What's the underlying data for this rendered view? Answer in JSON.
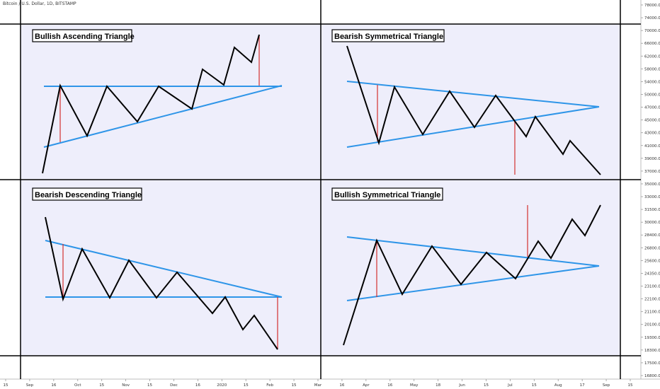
{
  "header": {
    "symbol": "Bitcoin / U.S. Dollar, 1D, BITSTAMP"
  },
  "colors": {
    "panel_bg": "#eeeefb",
    "trendline": "#2e95e8",
    "price": "#000000",
    "target": "#d32f2f",
    "border": "#000000"
  },
  "panels": [
    {
      "title": "Bullish Ascending Triangle",
      "trendlines": [
        [
          [
            62,
            122
          ],
          [
            398,
            122
          ]
        ],
        [
          [
            62,
            208
          ],
          [
            398,
            121
          ]
        ]
      ],
      "price_path": [
        [
          60,
          245
        ],
        [
          85,
          121
        ],
        [
          123,
          192
        ],
        [
          151,
          122
        ],
        [
          194,
          172
        ],
        [
          224,
          122
        ],
        [
          271,
          154
        ],
        [
          286,
          98
        ],
        [
          316,
          120
        ],
        [
          331,
          67
        ],
        [
          355,
          88
        ],
        [
          366,
          49
        ]
      ],
      "targets": [
        [
          [
            85,
            122
          ],
          [
            85,
            201
          ]
        ],
        [
          [
            366,
            49
          ],
          [
            366,
            121
          ]
        ]
      ]
    },
    {
      "title": "Bearish Symmetrical Triangle",
      "trendlines": [
        [
          [
            490,
            115
          ],
          [
            846,
            151
          ]
        ],
        [
          [
            490,
            208
          ],
          [
            846,
            151
          ]
        ]
      ],
      "price_path": [
        [
          490,
          65
        ],
        [
          535,
          202
        ],
        [
          557,
          123
        ],
        [
          597,
          190
        ],
        [
          635,
          129
        ],
        [
          670,
          180
        ],
        [
          700,
          135
        ],
        [
          743,
          193
        ],
        [
          756,
          165
        ],
        [
          795,
          218
        ],
        [
          805,
          199
        ],
        [
          848,
          247
        ]
      ],
      "targets": [
        [
          [
            533,
            120
          ],
          [
            533,
            200
          ]
        ],
        [
          [
            727,
            172
          ],
          [
            727,
            247
          ]
        ]
      ]
    },
    {
      "title": "Bearish Descending Triangle",
      "trendlines": [
        [
          [
            64,
            340
          ],
          [
            398,
            420
          ]
        ],
        [
          [
            64,
            420
          ],
          [
            398,
            420
          ]
        ]
      ],
      "price_path": [
        [
          64,
          307
        ],
        [
          89,
          423
        ],
        [
          116,
          352
        ],
        [
          155,
          421
        ],
        [
          182,
          368
        ],
        [
          221,
          421
        ],
        [
          250,
          385
        ],
        [
          300,
          443
        ],
        [
          318,
          420
        ],
        [
          343,
          466
        ],
        [
          359,
          446
        ],
        [
          392,
          494
        ]
      ],
      "targets": [
        [
          [
            89,
            345
          ],
          [
            89,
            422
          ]
        ],
        [
          [
            392,
            420
          ],
          [
            392,
            494
          ]
        ]
      ]
    },
    {
      "title": "Bullish Symmetrical Triangle",
      "trendlines": [
        [
          [
            490,
            335
          ],
          [
            846,
            376
          ]
        ],
        [
          [
            490,
            425
          ],
          [
            846,
            376
          ]
        ]
      ],
      "price_path": [
        [
          485,
          488
        ],
        [
          532,
          340
        ],
        [
          568,
          416
        ],
        [
          610,
          348
        ],
        [
          651,
          402
        ],
        [
          687,
          357
        ],
        [
          728,
          394
        ],
        [
          760,
          341
        ],
        [
          778,
          365
        ],
        [
          808,
          310
        ],
        [
          826,
          333
        ],
        [
          848,
          290
        ]
      ],
      "targets": [
        [
          [
            532,
            340
          ],
          [
            532,
            420
          ]
        ],
        [
          [
            745,
            290
          ],
          [
            745,
            363
          ]
        ]
      ]
    }
  ],
  "price_axis": {
    "ticks": [
      "78000.00",
      "74000.00",
      "70000.00",
      "66000.00",
      "62000.00",
      "58000.00",
      "54000.00",
      "50000.00",
      "47000.00",
      "45000.00",
      "43000.00",
      "41000.00",
      "39000.00",
      "37000.00",
      "35000.00",
      "33000.00",
      "31500.00",
      "30000.00",
      "28400.00",
      "26800.00",
      "25600.00",
      "24350.00",
      "23100.00",
      "22100.00",
      "21100.00",
      "20100.00",
      "19300.00",
      "18300.00",
      "17500.00",
      "16800.00"
    ]
  },
  "time_axis": {
    "ticks": [
      "15",
      "Sep",
      "16",
      "Oct",
      "15",
      "Nov",
      "15",
      "Dec",
      "16",
      "2020",
      "15",
      "Feb",
      "15",
      "Mar",
      "16",
      "Apr",
      "16",
      "May",
      "18",
      "Jun",
      "15",
      "Jul",
      "15",
      "Aug",
      "17",
      "Sep",
      "15"
    ]
  }
}
